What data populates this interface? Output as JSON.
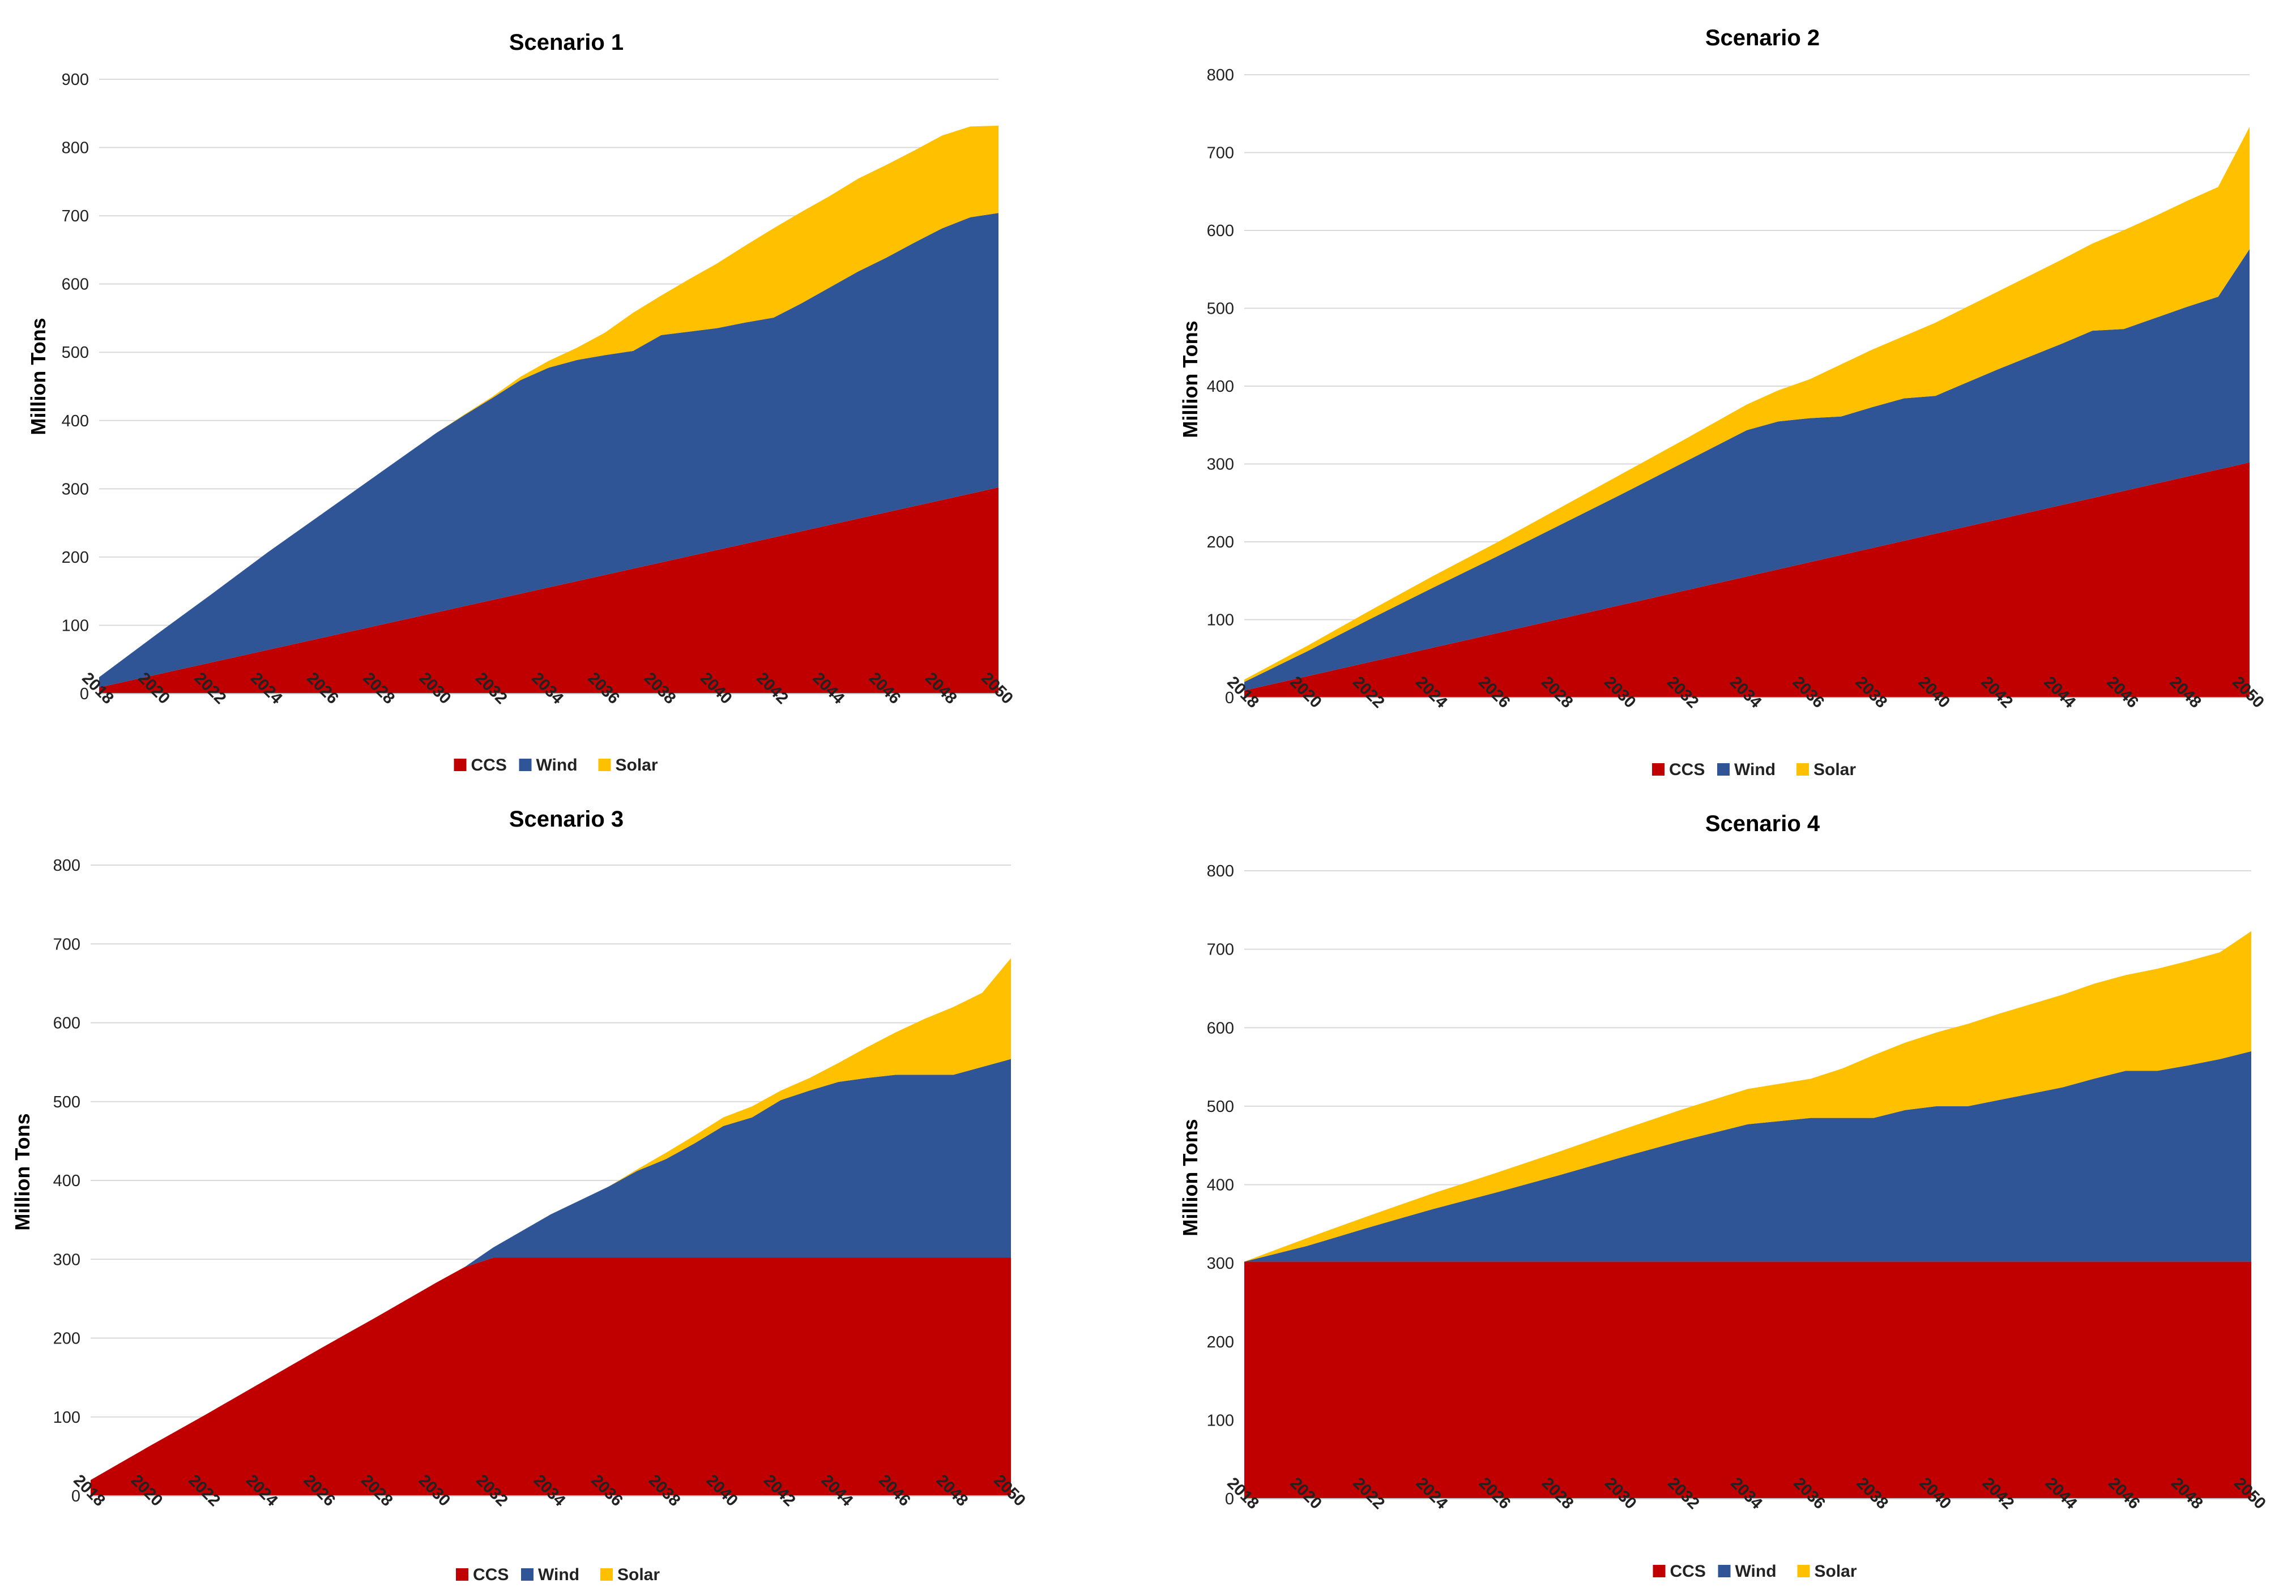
{
  "colors": {
    "CCS": "#c00000",
    "Wind": "#2f5597",
    "Solar": "#ffc000"
  },
  "chart_data": [
    {
      "type": "area",
      "title": "Scenario 1",
      "ylabel": "Million Tons",
      "xlabel": "",
      "ylim": [
        0,
        900
      ],
      "yticks": [
        0,
        100,
        200,
        300,
        400,
        500,
        600,
        700,
        800,
        900
      ],
      "xrange": [
        2018,
        2050
      ],
      "xticks": [
        2018,
        2020,
        2022,
        2024,
        2026,
        2028,
        2030,
        2032,
        2034,
        2036,
        2038,
        2040,
        2042,
        2044,
        2046,
        2048,
        2050
      ],
      "legend": [
        "CCS",
        "Wind",
        "Solar"
      ],
      "stacked": true,
      "series": [
        {
          "name": "CCS",
          "x": [
            2018,
            2050
          ],
          "values": [
            9,
            302
          ]
        },
        {
          "name": "Wind",
          "x": [
            2018,
            2020,
            2022,
            2024,
            2026,
            2028,
            2030,
            2031,
            2032,
            2033,
            2034,
            2035,
            2036,
            2037,
            2038,
            2039,
            2040,
            2041,
            2042,
            2043,
            2044,
            2045,
            2046,
            2047,
            2048,
            2049,
            2050
          ],
          "values": [
            15,
            58,
            100,
            143,
            183,
            223,
            263,
            280,
            296,
            313,
            322,
            324,
            322,
            319,
            333,
            329,
            325,
            324,
            322,
            334,
            348,
            362,
            373,
            386,
            398,
            405,
            402
          ]
        },
        {
          "name": "Solar",
          "x": [
            2018,
            2030,
            2031,
            2032,
            2033,
            2034,
            2035,
            2036,
            2037,
            2038,
            2039,
            2040,
            2041,
            2042,
            2043,
            2044,
            2045,
            2046,
            2047,
            2048,
            2049,
            2050
          ],
          "values": [
            0,
            0,
            1,
            2,
            5,
            10,
            18,
            33,
            56,
            58,
            77,
            95,
            113,
            131,
            134,
            134,
            136,
            136,
            135,
            136,
            133,
            128
          ]
        }
      ]
    },
    {
      "type": "area",
      "title": "Scenario 2",
      "ylabel": "Million Tons",
      "xlabel": "",
      "ylim": [
        0,
        800
      ],
      "yticks": [
        0,
        100,
        200,
        300,
        400,
        500,
        600,
        700,
        800
      ],
      "xrange": [
        2018,
        2050
      ],
      "xticks": [
        2018,
        2020,
        2022,
        2024,
        2026,
        2028,
        2030,
        2032,
        2034,
        2036,
        2038,
        2040,
        2042,
        2044,
        2046,
        2048,
        2050
      ],
      "legend": [
        "CCS",
        "Wind",
        "Solar"
      ],
      "stacked": true,
      "series": [
        {
          "name": "CCS",
          "x": [
            2018,
            2050
          ],
          "values": [
            9,
            302
          ]
        },
        {
          "name": "Wind",
          "x": [
            2018,
            2020,
            2022,
            2024,
            2026,
            2028,
            2030,
            2032,
            2034,
            2035,
            2036,
            2037,
            2038,
            2039,
            2040,
            2041,
            2042,
            2043,
            2044,
            2045,
            2046,
            2047,
            2048,
            2049,
            2050
          ],
          "values": [
            11,
            32,
            55,
            77,
            98,
            120,
            142,
            165,
            188,
            190,
            185,
            178,
            181,
            183,
            177,
            185,
            193,
            200,
            207,
            215,
            208,
            213,
            218,
            222,
            274
          ]
        },
        {
          "name": "Solar",
          "x": [
            2018,
            2020,
            2022,
            2024,
            2026,
            2028,
            2030,
            2032,
            2034,
            2035,
            2036,
            2037,
            2038,
            2039,
            2040,
            2041,
            2042,
            2043,
            2044,
            2045,
            2046,
            2047,
            2048,
            2049,
            2050
          ],
          "values": [
            3,
            7,
            11,
            15,
            18,
            22,
            26,
            29,
            33,
            40,
            50,
            67,
            74,
            80,
            94,
            97,
            100,
            104,
            108,
            112,
            127,
            131,
            136,
            141,
            157
          ]
        }
      ]
    },
    {
      "type": "area",
      "title": "Scenario 3",
      "ylabel": "Million Tons",
      "xlabel": "",
      "ylim": [
        0,
        800
      ],
      "yticks": [
        0,
        100,
        200,
        300,
        400,
        500,
        600,
        700,
        800
      ],
      "xrange": [
        2018,
        2050
      ],
      "xticks": [
        2018,
        2020,
        2022,
        2024,
        2026,
        2028,
        2030,
        2032,
        2034,
        2036,
        2038,
        2040,
        2042,
        2044,
        2046,
        2048,
        2050
      ],
      "legend": [
        "CCS",
        "Wind",
        "Solar"
      ],
      "stacked": true,
      "series": [
        {
          "name": "CCS",
          "x": [
            2018,
            2020,
            2022,
            2024,
            2026,
            2028,
            2030,
            2031,
            2032,
            2050
          ],
          "values": [
            20,
            62,
            103,
            145,
            187,
            228,
            270,
            290,
            302,
            302
          ]
        },
        {
          "name": "Wind",
          "x": [
            2018,
            2031,
            2032,
            2034,
            2036,
            2037,
            2038,
            2039,
            2040,
            2041,
            2042,
            2043,
            2044,
            2045,
            2046,
            2047,
            2048,
            2049,
            2050
          ],
          "values": [
            0,
            0,
            13,
            55,
            90,
            110,
            125,
            145,
            167,
            178,
            200,
            212,
            223,
            228,
            232,
            232,
            232,
            242,
            252
          ]
        },
        {
          "name": "Solar",
          "x": [
            2018,
            2036,
            2037,
            2038,
            2039,
            2040,
            2041,
            2042,
            2043,
            2044,
            2045,
            2046,
            2047,
            2048,
            2049,
            2050
          ],
          "values": [
            0,
            0,
            2,
            8,
            10,
            11,
            14,
            12,
            16,
            24,
            39,
            54,
            71,
            86,
            94,
            128
          ]
        }
      ]
    },
    {
      "type": "area",
      "title": "Scenario 4",
      "ylabel": "Million Tons",
      "xlabel": "",
      "ylim": [
        0,
        800
      ],
      "yticks": [
        0,
        100,
        200,
        300,
        400,
        500,
        600,
        700,
        800
      ],
      "xrange": [
        2018,
        2050
      ],
      "xticks": [
        2018,
        2020,
        2022,
        2024,
        2026,
        2028,
        2030,
        2032,
        2034,
        2036,
        2038,
        2040,
        2042,
        2044,
        2046,
        2048,
        2050
      ],
      "legend": [
        "CCS",
        "Wind",
        "Solar"
      ],
      "stacked": true,
      "series": [
        {
          "name": "CCS",
          "x": [
            2018,
            2050
          ],
          "values": [
            302,
            302
          ]
        },
        {
          "name": "Wind",
          "x": [
            2018,
            2020,
            2022,
            2024,
            2026,
            2028,
            2030,
            2032,
            2034,
            2036,
            2037,
            2038,
            2039,
            2040,
            2041,
            2042,
            2043,
            2044,
            2045,
            2046,
            2047,
            2048,
            2049,
            2050
          ],
          "values": [
            0,
            20,
            44,
            67,
            88,
            110,
            133,
            155,
            175,
            183,
            183,
            183,
            193,
            198,
            198,
            206,
            214,
            222,
            233,
            243,
            243,
            250,
            258,
            268
          ]
        },
        {
          "name": "Solar",
          "x": [
            2018,
            2020,
            2022,
            2024,
            2026,
            2028,
            2030,
            2032,
            2034,
            2036,
            2037,
            2038,
            2039,
            2040,
            2041,
            2042,
            2043,
            2044,
            2045,
            2046,
            2047,
            2048,
            2049,
            2050
          ],
          "values": [
            0,
            10,
            15,
            20,
            25,
            30,
            35,
            40,
            45,
            50,
            63,
            80,
            86,
            94,
            105,
            110,
            114,
            118,
            121,
            122,
            130,
            133,
            136,
            153
          ]
        }
      ]
    }
  ]
}
